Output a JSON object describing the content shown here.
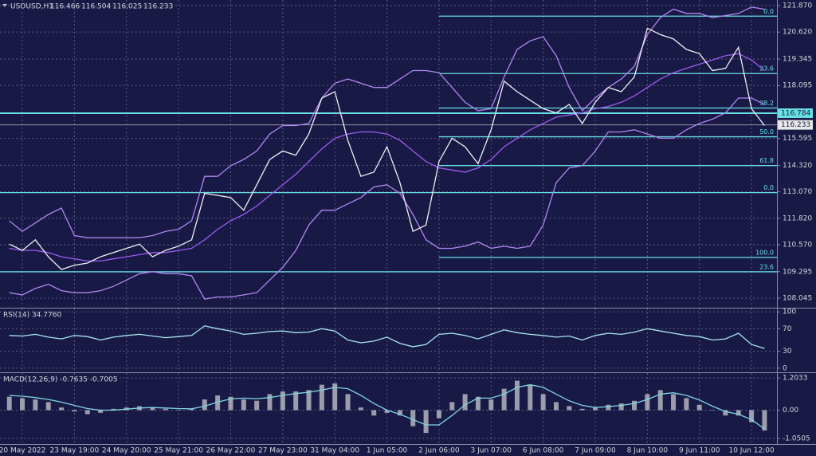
{
  "chart_data": [
    {
      "type": "line",
      "title": "USOUSD,H1",
      "quote": [
        116.466,
        116.504,
        116.025,
        116.233
      ],
      "ylim": [
        107.592,
        122.134
      ],
      "yticks": [
        {
          "value": 121.87,
          "label": "121.870"
        },
        {
          "value": 120.62,
          "label": "120.620"
        },
        119.345,
        118.095,
        115.595,
        {
          "value": 114.32,
          "label": "114.320"
        },
        {
          "value": 113.07,
          "label": "113.070"
        },
        {
          "value": 111.82,
          "label": "111.820"
        },
        {
          "value": 110.57,
          "label": "110.570"
        },
        109.295,
        108.045
      ],
      "grid": true,
      "price_markers": [
        {
          "value": 116.784,
          "color": "#66e0e0"
        },
        {
          "value": 116.233,
          "color": "#e8e8e8"
        }
      ],
      "fibonacci": [
        {
          "levels": [
            {
              "value": 121.37,
              "label": "0.0"
            },
            {
              "value": 118.66,
              "label": "23.6"
            },
            {
              "value": 117.03,
              "label": "38.2"
            },
            {
              "value": 115.67,
              "label": "50.0"
            },
            {
              "value": 114.31,
              "label": "61.8"
            },
            {
              "value": 109.97,
              "label": "100.0"
            }
          ]
        },
        {
          "levels": [
            {
              "value": 113.03,
              "label": "0.0"
            },
            {
              "value": 109.29,
              "label": "23.6"
            }
          ]
        }
      ],
      "series": [
        {
          "color": "#b088f0",
          "values": [
            111.7,
            111.2,
            111.6,
            112.0,
            112.3,
            111.0,
            110.9,
            110.9,
            110.9,
            110.9,
            110.9,
            111.0,
            111.2,
            111.3,
            111.7,
            113.8,
            113.8,
            114.3,
            114.6,
            115.0,
            115.8,
            116.2,
            116.2,
            116.3,
            117.5,
            118.2,
            118.4,
            118.2,
            118.0,
            118.0,
            118.4,
            118.8,
            118.8,
            118.7,
            118.0,
            117.3,
            116.9,
            117.0,
            118.5,
            119.8,
            120.2,
            120.4,
            119.5,
            118.0,
            116.9,
            117.5,
            118.0,
            118.4,
            119.0,
            120.5,
            121.3,
            121.7,
            121.5,
            121.5,
            121.3,
            121.4,
            121.5,
            121.8,
            121.7
          ]
        },
        {
          "color": "#9a5cf0",
          "values": [
            110.4,
            110.3,
            110.3,
            110.2,
            110.0,
            109.9,
            109.8,
            109.8,
            109.9,
            110.0,
            110.1,
            110.2,
            110.2,
            110.3,
            110.4,
            110.8,
            111.3,
            111.7,
            112.0,
            112.4,
            112.9,
            113.4,
            113.9,
            114.5,
            115.1,
            115.6,
            115.8,
            115.9,
            115.9,
            115.8,
            115.5,
            115.0,
            114.5,
            114.2,
            114.1,
            114.0,
            114.2,
            114.6,
            115.2,
            115.6,
            116.0,
            116.3,
            116.6,
            116.7,
            116.8,
            117.0,
            117.1,
            117.3,
            117.6,
            118.0,
            118.4,
            118.7,
            118.9,
            119.1,
            119.3,
            119.5,
            119.6,
            119.3,
            118.8
          ]
        },
        {
          "color": "#b088f0",
          "values": [
            108.3,
            108.2,
            108.5,
            108.7,
            108.4,
            108.3,
            108.3,
            108.4,
            108.6,
            108.9,
            109.2,
            109.3,
            109.2,
            109.2,
            109.1,
            108.0,
            108.1,
            108.1,
            108.2,
            108.3,
            108.9,
            109.5,
            110.3,
            111.5,
            112.2,
            112.2,
            112.5,
            112.8,
            113.3,
            113.4,
            113.0,
            112.0,
            110.8,
            110.4,
            110.4,
            110.5,
            110.7,
            110.4,
            110.5,
            110.4,
            110.5,
            111.5,
            113.5,
            114.2,
            114.3,
            115.0,
            115.9,
            115.9,
            116.0,
            115.8,
            115.6,
            115.6,
            116.0,
            116.3,
            116.5,
            116.8,
            117.5,
            117.5,
            117.2
          ]
        },
        {
          "color": "#f0f0f4",
          "values": [
            110.6,
            110.3,
            110.8,
            110.0,
            109.4,
            109.6,
            109.7,
            110.0,
            110.2,
            110.4,
            110.6,
            110.0,
            110.3,
            110.5,
            110.8,
            113.0,
            112.9,
            112.8,
            112.2,
            113.4,
            114.6,
            115.0,
            114.8,
            115.8,
            117.5,
            117.8,
            115.5,
            113.8,
            114.0,
            115.2,
            113.5,
            111.2,
            111.5,
            114.5,
            115.6,
            115.2,
            114.4,
            116.0,
            118.3,
            117.8,
            117.4,
            117.0,
            116.8,
            117.2,
            116.3,
            117.3,
            118.0,
            117.8,
            118.5,
            120.8,
            120.5,
            120.3,
            119.8,
            119.6,
            118.8,
            118.9,
            119.9,
            117.0,
            116.2
          ]
        }
      ]
    },
    {
      "type": "line",
      "title": "RSI(14) 34.7760",
      "ylim": [
        -7.4,
        105.9
      ],
      "yticks": [
        100,
        70,
        30,
        0
      ],
      "grid": true,
      "series": [
        {
          "color": "#a8e6ef",
          "values": [
            58,
            57,
            60,
            55,
            52,
            58,
            56,
            50,
            55,
            58,
            60,
            57,
            54,
            56,
            58,
            75,
            70,
            66,
            60,
            62,
            65,
            66,
            63,
            64,
            70,
            66,
            50,
            45,
            48,
            55,
            44,
            38,
            42,
            60,
            62,
            58,
            52,
            60,
            68,
            63,
            60,
            58,
            55,
            57,
            50,
            58,
            62,
            60,
            64,
            70,
            66,
            62,
            58,
            56,
            50,
            52,
            62,
            42,
            35
          ]
        }
      ]
    },
    {
      "type": "bar",
      "title": "MACD(12,26,9) -0.7635 -0.7005",
      "ylim": [
        -1.264,
        1.384
      ],
      "yticks": [
        1.2033,
        {
          "value": 0,
          "label": "0.00"
        },
        -1.0505
      ],
      "grid": true,
      "categories": [
        null,
        "20 May 2022",
        null,
        null,
        null,
        "23 May 19:00",
        null,
        null,
        null,
        "24 May 20:00",
        null,
        null,
        null,
        "25 May 21:00",
        null,
        null,
        null,
        "26 May 22:00",
        null,
        null,
        null,
        "27 May 23:00",
        null,
        null,
        null,
        "31 May 04:00",
        null,
        null,
        null,
        "1 Jun 05:00",
        null,
        null,
        null,
        "2 Jun 06:00",
        null,
        null,
        null,
        "3 Jun 07:00",
        null,
        null,
        null,
        "6 Jun 08:00",
        null,
        null,
        null,
        "7 Jun 09:00",
        null,
        null,
        null,
        "8 Jun 10:00",
        null,
        null,
        null,
        "9 Jun 11:00",
        null,
        null,
        null,
        "10 Jun 12:00",
        null
      ],
      "series": [
        {
          "color": "#c8c8d0",
          "values": [
            0.5,
            0.45,
            0.4,
            0.3,
            0.1,
            -0.05,
            -0.15,
            -0.1,
            0.05,
            0.1,
            0.15,
            0.1,
            0.05,
            0.0,
            0.05,
            0.4,
            0.55,
            0.5,
            0.4,
            0.35,
            0.6,
            0.7,
            0.7,
            0.75,
            0.95,
            1.0,
            0.6,
            0.1,
            -0.2,
            -0.1,
            -0.2,
            -0.6,
            -0.85,
            -0.3,
            0.3,
            0.6,
            0.5,
            0.4,
            0.8,
            1.1,
            0.95,
            0.6,
            0.3,
            0.15,
            0.05,
            0.1,
            0.2,
            0.25,
            0.35,
            0.6,
            0.75,
            0.6,
            0.45,
            0.2,
            0.0,
            -0.2,
            -0.2,
            -0.45,
            -0.76
          ]
        },
        {
          "type": "line",
          "color": "#7fd6e0",
          "values": [
            0.55,
            0.52,
            0.47,
            0.4,
            0.3,
            0.18,
            0.06,
            0.0,
            0.0,
            0.04,
            0.08,
            0.1,
            0.08,
            0.06,
            0.05,
            0.15,
            0.3,
            0.42,
            0.45,
            0.43,
            0.47,
            0.55,
            0.62,
            0.67,
            0.75,
            0.85,
            0.8,
            0.55,
            0.25,
            0.0,
            -0.15,
            -0.35,
            -0.55,
            -0.55,
            -0.2,
            0.2,
            0.45,
            0.45,
            0.6,
            0.85,
            0.95,
            0.85,
            0.6,
            0.35,
            0.18,
            0.1,
            0.13,
            0.18,
            0.25,
            0.4,
            0.6,
            0.65,
            0.55,
            0.38,
            0.15,
            -0.05,
            -0.15,
            -0.35,
            -0.7
          ]
        }
      ]
    }
  ]
}
